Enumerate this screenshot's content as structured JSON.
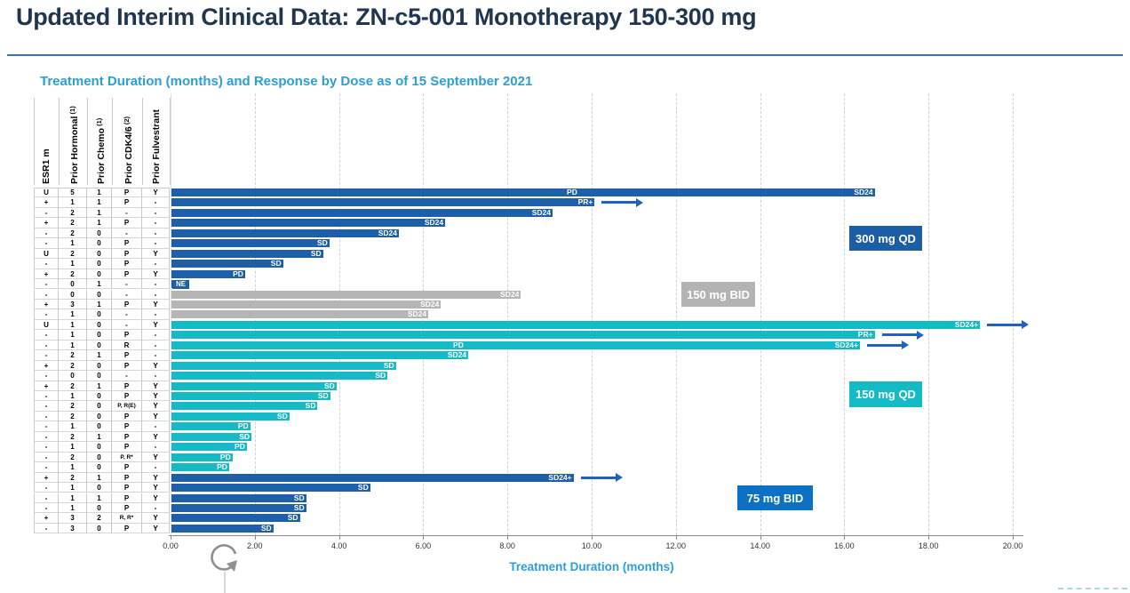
{
  "header": {
    "title": "Updated Interim Clinical Data: ZN-c5-001 Monotherapy 150-300 mg"
  },
  "chart_data": {
    "type": "bar",
    "variant": "horizontal-swimmer-plot",
    "title": "Treatment Duration (months) and Response by Dose as of 15 September 2021",
    "xlabel": "Treatment Duration (months)",
    "xlim": [
      0,
      20
    ],
    "x_ticks": [
      "0.00",
      "2.00",
      "4.00",
      "6.00",
      "8.00",
      "10.00",
      "12.00",
      "14.00",
      "16.00",
      "18.00",
      "20.00"
    ],
    "grid": true,
    "column_headers": [
      {
        "label": "ESR1 m",
        "sup": ""
      },
      {
        "label": "Prior Hormonal",
        "sup": "(1)"
      },
      {
        "label": "Prior Chemo",
        "sup": "(1)"
      },
      {
        "label": "Prior CDK4/6",
        "sup": "(2)"
      },
      {
        "label": "Prior Fulvestrant",
        "sup": ""
      }
    ],
    "groups": [
      {
        "name": "300 mg QD",
        "bar_color": "#1e5fa9",
        "label_bg": "#1b5ea6"
      },
      {
        "name": "150 mg BID",
        "bar_color": "#b5b5b5",
        "label_bg": "#b3b3b3"
      },
      {
        "name": "150 mg QD",
        "bar_color": "#14bac5",
        "label_bg": "#14bac5"
      },
      {
        "name": "75 mg BID",
        "bar_color": "#1e5fa9",
        "label_bg": "#0c70c5"
      }
    ],
    "arrow_color": "#1f62c2",
    "arrow_meaning": "treatment ongoing",
    "patients": [
      {
        "esr1": "U",
        "prior_hormonal": "5",
        "prior_chemo": "1",
        "prior_cdk46": "P",
        "prior_fulvestrant": "Y",
        "group": "300 mg QD",
        "duration": 16.7,
        "response": "SD24",
        "ongoing": false,
        "marker": {
          "text": "PD",
          "at": 9.6
        }
      },
      {
        "esr1": "+",
        "prior_hormonal": "1",
        "prior_chemo": "1",
        "prior_cdk46": "P",
        "prior_fulvestrant": "-",
        "group": "300 mg QD",
        "duration": 10.05,
        "response": "PR+",
        "ongoing": true
      },
      {
        "esr1": "-",
        "prior_hormonal": "2",
        "prior_chemo": "1",
        "prior_cdk46": "-",
        "prior_fulvestrant": "-",
        "group": "300 mg QD",
        "duration": 9.05,
        "response": "SD24",
        "ongoing": false
      },
      {
        "esr1": "+",
        "prior_hormonal": "2",
        "prior_chemo": "1",
        "prior_cdk46": "P",
        "prior_fulvestrant": "-",
        "group": "300 mg QD",
        "duration": 6.5,
        "response": "SD24",
        "ongoing": false
      },
      {
        "esr1": "-",
        "prior_hormonal": "2",
        "prior_chemo": "0",
        "prior_cdk46": "-",
        "prior_fulvestrant": "-",
        "group": "300 mg QD",
        "duration": 5.4,
        "response": "SD24",
        "ongoing": false
      },
      {
        "esr1": "-",
        "prior_hormonal": "1",
        "prior_chemo": "0",
        "prior_cdk46": "P",
        "prior_fulvestrant": "-",
        "group": "300 mg QD",
        "duration": 3.75,
        "response": "SD",
        "ongoing": false
      },
      {
        "esr1": "U",
        "prior_hormonal": "2",
        "prior_chemo": "0",
        "prior_cdk46": "P",
        "prior_fulvestrant": "Y",
        "group": "300 mg QD",
        "duration": 3.6,
        "response": "SD",
        "ongoing": false
      },
      {
        "esr1": "-",
        "prior_hormonal": "1",
        "prior_chemo": "0",
        "prior_cdk46": "P",
        "prior_fulvestrant": "-",
        "group": "300 mg QD",
        "duration": 2.65,
        "response": "SD",
        "ongoing": false
      },
      {
        "esr1": "+",
        "prior_hormonal": "2",
        "prior_chemo": "0",
        "prior_cdk46": "P",
        "prior_fulvestrant": "Y",
        "group": "300 mg QD",
        "duration": 1.75,
        "response": "PD",
        "ongoing": false
      },
      {
        "esr1": "-",
        "prior_hormonal": "0",
        "prior_chemo": "1",
        "prior_cdk46": "-",
        "prior_fulvestrant": "-",
        "group": "300 mg QD",
        "duration": 0.35,
        "response": "NE",
        "ongoing": false,
        "label_outside": true
      },
      {
        "esr1": "-",
        "prior_hormonal": "0",
        "prior_chemo": "0",
        "prior_cdk46": "-",
        "prior_fulvestrant": "-",
        "group": "150 mg BID",
        "duration": 8.3,
        "response": "SD24",
        "ongoing": false
      },
      {
        "esr1": "+",
        "prior_hormonal": "3",
        "prior_chemo": "1",
        "prior_cdk46": "P",
        "prior_fulvestrant": "Y",
        "group": "150 mg BID",
        "duration": 6.4,
        "response": "SD24",
        "ongoing": false
      },
      {
        "esr1": "-",
        "prior_hormonal": "1",
        "prior_chemo": "0",
        "prior_cdk46": "-",
        "prior_fulvestrant": "-",
        "group": "150 mg BID",
        "duration": 6.1,
        "response": "SD24",
        "ongoing": false
      },
      {
        "esr1": "U",
        "prior_hormonal": "1",
        "prior_chemo": "0",
        "prior_cdk46": "-",
        "prior_fulvestrant": "Y",
        "group": "150 mg QD",
        "duration": 19.2,
        "response": "SD24+",
        "ongoing": true
      },
      {
        "esr1": "-",
        "prior_hormonal": "1",
        "prior_chemo": "0",
        "prior_cdk46": "P",
        "prior_fulvestrant": "-",
        "group": "150 mg QD",
        "duration": 16.7,
        "response": "PR+",
        "ongoing": true
      },
      {
        "esr1": "-",
        "prior_hormonal": "1",
        "prior_chemo": "0",
        "prior_cdk46": "R",
        "prior_fulvestrant": "-",
        "group": "150 mg QD",
        "duration": 16.35,
        "response": "SD24+",
        "ongoing": true,
        "marker": {
          "text": "PD",
          "at": 6.9
        }
      },
      {
        "esr1": "-",
        "prior_hormonal": "2",
        "prior_chemo": "1",
        "prior_cdk46": "P",
        "prior_fulvestrant": "-",
        "group": "150 mg QD",
        "duration": 7.05,
        "response": "SD24",
        "ongoing": false
      },
      {
        "esr1": "+",
        "prior_hormonal": "2",
        "prior_chemo": "0",
        "prior_cdk46": "P",
        "prior_fulvestrant": "Y",
        "group": "150 mg QD",
        "duration": 5.33,
        "response": "SD",
        "ongoing": false
      },
      {
        "esr1": "-",
        "prior_hormonal": "0",
        "prior_chemo": "0",
        "prior_cdk46": "-",
        "prior_fulvestrant": "-",
        "group": "150 mg QD",
        "duration": 5.13,
        "response": "SD",
        "ongoing": false
      },
      {
        "esr1": "+",
        "prior_hormonal": "2",
        "prior_chemo": "1",
        "prior_cdk46": "P",
        "prior_fulvestrant": "Y",
        "group": "150 mg QD",
        "duration": 3.92,
        "response": "SD",
        "ongoing": false
      },
      {
        "esr1": "-",
        "prior_hormonal": "1",
        "prior_chemo": "0",
        "prior_cdk46": "P",
        "prior_fulvestrant": "Y",
        "group": "150 mg QD",
        "duration": 3.77,
        "response": "SD",
        "ongoing": false
      },
      {
        "esr1": "-",
        "prior_hormonal": "2",
        "prior_chemo": "0",
        "prior_cdk46": "P, R(E)",
        "prior_fulvestrant": "Y",
        "group": "150 mg QD",
        "duration": 3.47,
        "response": "SD",
        "ongoing": false
      },
      {
        "esr1": "-",
        "prior_hormonal": "2",
        "prior_chemo": "0",
        "prior_cdk46": "P",
        "prior_fulvestrant": "Y",
        "group": "150 mg QD",
        "duration": 2.8,
        "response": "SD",
        "ongoing": false
      },
      {
        "esr1": "-",
        "prior_hormonal": "1",
        "prior_chemo": "0",
        "prior_cdk46": "P",
        "prior_fulvestrant": "-",
        "group": "150 mg QD",
        "duration": 1.87,
        "response": "PD",
        "ongoing": false
      },
      {
        "esr1": "-",
        "prior_hormonal": "2",
        "prior_chemo": "1",
        "prior_cdk46": "P",
        "prior_fulvestrant": "Y",
        "group": "150 mg QD",
        "duration": 1.9,
        "response": "SD",
        "ongoing": false
      },
      {
        "esr1": "-",
        "prior_hormonal": "1",
        "prior_chemo": "0",
        "prior_cdk46": "P",
        "prior_fulvestrant": "-",
        "group": "150 mg QD",
        "duration": 1.79,
        "response": "PD",
        "ongoing": false
      },
      {
        "esr1": "-",
        "prior_hormonal": "2",
        "prior_chemo": "0",
        "prior_cdk46": "P, R*",
        "prior_fulvestrant": "Y",
        "group": "150 mg QD",
        "duration": 1.45,
        "response": "PD",
        "ongoing": false
      },
      {
        "esr1": "-",
        "prior_hormonal": "1",
        "prior_chemo": "0",
        "prior_cdk46": "P",
        "prior_fulvestrant": "-",
        "group": "150 mg QD",
        "duration": 1.37,
        "response": "PD",
        "ongoing": false
      },
      {
        "esr1": "+",
        "prior_hormonal": "2",
        "prior_chemo": "1",
        "prior_cdk46": "P",
        "prior_fulvestrant": "Y",
        "group": "75 mg BID",
        "duration": 9.55,
        "response": "SD24+",
        "ongoing": true
      },
      {
        "esr1": "-",
        "prior_hormonal": "1",
        "prior_chemo": "0",
        "prior_cdk46": "P",
        "prior_fulvestrant": "Y",
        "group": "75 mg BID",
        "duration": 4.72,
        "response": "SD",
        "ongoing": false
      },
      {
        "esr1": "-",
        "prior_hormonal": "1",
        "prior_chemo": "1",
        "prior_cdk46": "P",
        "prior_fulvestrant": "Y",
        "group": "75 mg BID",
        "duration": 3.2,
        "response": "SD",
        "ongoing": false
      },
      {
        "esr1": "-",
        "prior_hormonal": "1",
        "prior_chemo": "0",
        "prior_cdk46": "P",
        "prior_fulvestrant": "-",
        "group": "75 mg BID",
        "duration": 3.2,
        "response": "SD",
        "ongoing": false
      },
      {
        "esr1": "+",
        "prior_hormonal": "3",
        "prior_chemo": "2",
        "prior_cdk46": "R, R*",
        "prior_fulvestrant": "Y",
        "group": "75 mg BID",
        "duration": 3.05,
        "response": "SD",
        "ongoing": false
      },
      {
        "esr1": "-",
        "prior_hormonal": "3",
        "prior_chemo": "0",
        "prior_cdk46": "P",
        "prior_fulvestrant": "Y",
        "group": "75 mg BID",
        "duration": 2.42,
        "response": "SD",
        "ongoing": false
      }
    ]
  }
}
